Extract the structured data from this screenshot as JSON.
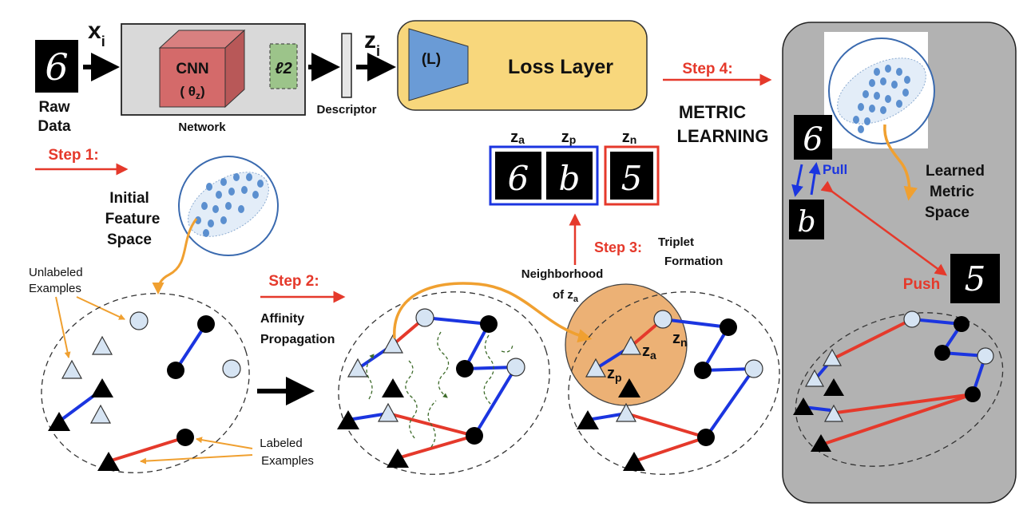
{
  "top": {
    "x_label": "x",
    "x_sub": "i",
    "raw_data_line1": "Raw",
    "raw_data_line2": "Data",
    "cnn_label": "CNN",
    "theta_label": "( θ",
    "theta_sub": "z",
    "theta_close": ")",
    "l2_label": "ℓ2",
    "network_label": "Network",
    "descriptor_label": "Descriptor",
    "z_label": "z",
    "z_sub": "i",
    "loss_L": "(L)",
    "loss_layer": "Loss Layer"
  },
  "steps": {
    "step1": "Step 1:",
    "step2": "Step 2:",
    "step3": "Step 3:",
    "step4": "Step 4:"
  },
  "labels": {
    "initial_feature_1": "Initial",
    "initial_feature_2": "Feature",
    "initial_feature_3": "Space",
    "unlabeled_1": "Unlabeled",
    "unlabeled_2": "Examples",
    "labeled_1": "Labeled",
    "labeled_2": "Examples",
    "affinity_1": "Affinity",
    "affinity_2": "Propagation",
    "neighborhood_1": "Neighborhood",
    "neighborhood_2": "of z",
    "neighborhood_sub": "a",
    "triplet_1": "Triplet",
    "triplet_2": "Formation",
    "metric_1": "METRIC",
    "metric_2": "LEARNING",
    "learned_1": "Learned",
    "learned_2": "Metric",
    "learned_3": "Space",
    "pull": "Pull",
    "push": "Push"
  },
  "triplet": {
    "za": "z",
    "za_sub": "a",
    "zp": "z",
    "zp_sub": "p",
    "zn": "z",
    "zn_sub": "n"
  },
  "digits": {
    "raw": "6",
    "anchor": "6",
    "positive": "b",
    "negative": "5"
  },
  "graph_labels": {
    "za": "z",
    "za_sub": "a",
    "zp": "z",
    "zp_sub": "p",
    "zn": "z",
    "zn_sub": "n"
  },
  "colors": {
    "red": "#e5392b",
    "blue": "#1b35e0",
    "orange": "#f0a030",
    "light_blue": "#d6e4f3",
    "panel_gray": "#b2b2b2",
    "loss_yellow": "#f8d77c"
  }
}
